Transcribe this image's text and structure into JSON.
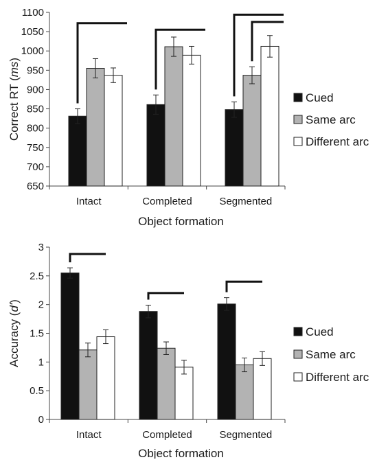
{
  "chart_data": [
    {
      "type": "bar",
      "xlabel": "Object formation",
      "ylabel": "Correct RT (ms)",
      "ylabel_main": "Correct RT (",
      "ylabel_unit": "ms",
      "ylabel_close": ")",
      "ylim": [
        650,
        1100
      ],
      "yticks": [
        "650",
        "700",
        "750",
        "800",
        "850",
        "900",
        "950",
        "1000",
        "1050",
        "1100"
      ],
      "categories": [
        "Intact",
        "Completed",
        "Segmented"
      ],
      "series": [
        {
          "name": "Cued",
          "color": "#111111",
          "values": [
            831,
            861,
            848
          ],
          "errors": [
            19,
            25,
            20
          ]
        },
        {
          "name": "Same arc",
          "color": "#b3b3b3",
          "values": [
            955,
            1011,
            937
          ],
          "errors": [
            25,
            25,
            22
          ]
        },
        {
          "name": "Different arc",
          "color": "#ffffff",
          "values": [
            937,
            989,
            1012
          ],
          "errors": [
            19,
            23,
            28
          ]
        }
      ],
      "legend": "right",
      "grid": false,
      "significance": [
        {
          "from": "Intact:Cued",
          "to": "Intact:Different arc",
          "level": 1072
        },
        {
          "from": "Completed:Cued",
          "to": "Completed:Different arc",
          "level": 1055
        },
        {
          "from": "Segmented:Cued",
          "to": "Segmented:Different arc",
          "level": 1094
        },
        {
          "from": "Segmented:Same arc",
          "to": "Segmented:Different arc",
          "level": 1075
        }
      ]
    },
    {
      "type": "bar",
      "xlabel": "Object formation",
      "ylabel": "Accuracy (d')",
      "ylabel_main": "Accuracy (",
      "ylabel_unit": "d'",
      "ylabel_close": ")",
      "ylim": [
        0,
        3
      ],
      "yticks": [
        "0",
        "0.5",
        "1",
        "1.5",
        "2",
        "2.5",
        "3"
      ],
      "categories": [
        "Intact",
        "Completed",
        "Segmented"
      ],
      "series": [
        {
          "name": "Cued",
          "color": "#111111",
          "values": [
            2.55,
            1.88,
            2.01
          ],
          "errors": [
            0.09,
            0.11,
            0.11
          ]
        },
        {
          "name": "Same arc",
          "color": "#b3b3b3",
          "values": [
            1.21,
            1.24,
            0.95
          ],
          "errors": [
            0.12,
            0.11,
            0.12
          ]
        },
        {
          "name": "Different arc",
          "color": "#ffffff",
          "values": [
            1.44,
            0.91,
            1.06
          ],
          "errors": [
            0.12,
            0.12,
            0.12
          ]
        }
      ],
      "legend": "right",
      "grid": false,
      "significance": [
        {
          "from": "Intact:Cued",
          "to": "Intact:Different arc",
          "level": 2.88
        },
        {
          "from": "Completed:Cued",
          "to": "Completed:Different arc",
          "level": 2.2
        },
        {
          "from": "Segmented:Cued",
          "to": "Segmented:Different arc",
          "level": 2.4
        }
      ]
    }
  ]
}
